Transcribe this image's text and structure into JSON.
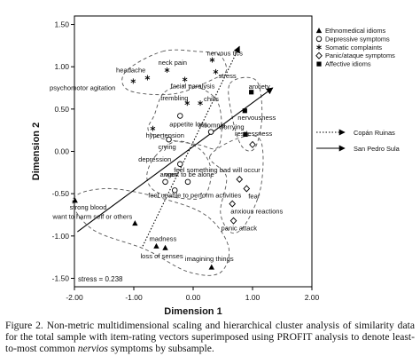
{
  "chart_data": {
    "type": "scatter",
    "xlabel": "Dimension 1",
    "ylabel": "Dimension 2",
    "xlim": [
      -2.0,
      2.0
    ],
    "ylim": [
      -1.6,
      1.6
    ],
    "xticks": [
      "-2.00",
      "-1.00",
      "0.00",
      "1.00",
      "2.00"
    ],
    "yticks": [
      "1.50",
      "1.00",
      "0.50",
      "0.00",
      "-0.50",
      "-1.00",
      "-1.50"
    ],
    "xtick_values": [
      -2,
      -1,
      0,
      1,
      2
    ],
    "ytick_values": [
      1.5,
      1.0,
      0.5,
      0.0,
      -0.5,
      -1.0,
      -1.5
    ],
    "stress_label": "stress = 0.238",
    "legend": {
      "position": "right",
      "series": [
        {
          "name": "Ethnomedical idioms",
          "marker": "triangle"
        },
        {
          "name": "Depressive symptoms",
          "marker": "circle"
        },
        {
          "name": "Somatic complaints",
          "marker": "star"
        },
        {
          "name": "Panic/ataque symptoms",
          "marker": "diamond"
        },
        {
          "name": "Affective idioms",
          "marker": "square"
        }
      ],
      "vectors": [
        {
          "name": "Copán Ruinas",
          "style": "dotted"
        },
        {
          "name": "San Pedro Sula",
          "style": "solid"
        }
      ]
    },
    "points": [
      {
        "label": "nervous tics",
        "x": 0.32,
        "y": 1.08,
        "marker": "star"
      },
      {
        "label": "headache",
        "x": -0.77,
        "y": 0.87,
        "marker": "star"
      },
      {
        "label": "neck pain",
        "x": -0.44,
        "y": 0.96,
        "marker": "star"
      },
      {
        "label": "stress",
        "x": 0.38,
        "y": 0.94,
        "marker": "star"
      },
      {
        "label": "facial paralysis",
        "x": -0.14,
        "y": 0.85,
        "marker": "star"
      },
      {
        "label": "psychomotor agitation",
        "x": -1.01,
        "y": 0.83,
        "marker": "star"
      },
      {
        "label": "anxiety",
        "x": 0.98,
        "y": 0.7,
        "marker": "square"
      },
      {
        "label": "trembling",
        "x": -0.1,
        "y": 0.57,
        "marker": "star"
      },
      {
        "label": "chills",
        "x": 0.12,
        "y": 0.57,
        "marker": "star"
      },
      {
        "label": "nervousness",
        "x": 0.87,
        "y": 0.48,
        "marker": "square"
      },
      {
        "label": "appetite loss",
        "x": -0.22,
        "y": 0.42,
        "marker": "circle"
      },
      {
        "label": "hypertension",
        "x": -0.68,
        "y": 0.27,
        "marker": "star"
      },
      {
        "label": "worrying",
        "x": 0.88,
        "y": 0.2,
        "marker": "square"
      },
      {
        "label": "insomnia",
        "x": 0.3,
        "y": 0.23,
        "marker": "circle"
      },
      {
        "label": "crying",
        "x": -0.41,
        "y": 0.14,
        "marker": "circle"
      },
      {
        "label": "restlessness",
        "x": 1.0,
        "y": 0.08,
        "marker": "diamond"
      },
      {
        "label": "depression",
        "x": -0.22,
        "y": -0.15,
        "marker": "circle"
      },
      {
        "label": "want to be alone",
        "x": -0.09,
        "y": -0.36,
        "marker": "circle"
      },
      {
        "label": "feel something bad will occur",
        "x": 0.78,
        "y": -0.33,
        "marker": "diamond"
      },
      {
        "label": "anger",
        "x": -0.47,
        "y": -0.36,
        "marker": "circle"
      },
      {
        "label": "feel unable to perform activities",
        "x": -0.31,
        "y": -0.46,
        "marker": "circle"
      },
      {
        "label": "fear",
        "x": 0.9,
        "y": -0.44,
        "marker": "diamond"
      },
      {
        "label": "strong blood",
        "x": -1.99,
        "y": -0.58,
        "marker": "triangle"
      },
      {
        "label": "anxious reactions",
        "x": 0.66,
        "y": -0.62,
        "marker": "diamond"
      },
      {
        "label": "panic attack",
        "x": 0.68,
        "y": -0.82,
        "marker": "diamond"
      },
      {
        "label": "want to harm self or others",
        "x": -0.98,
        "y": -0.85,
        "marker": "triangle"
      },
      {
        "label": "madness",
        "x": -0.62,
        "y": -1.12,
        "marker": "triangle"
      },
      {
        "label": "loss of senses",
        "x": -0.47,
        "y": -1.14,
        "marker": "triangle"
      },
      {
        "label": "imagining things",
        "x": 0.31,
        "y": -1.37,
        "marker": "triangle"
      }
    ],
    "vectors": [
      {
        "name": "Copán Ruinas",
        "style": "dotted",
        "from": [
          -0.85,
          -1.12
        ],
        "to": [
          0.78,
          1.24
        ]
      },
      {
        "name": "San Pedro Sula",
        "style": "solid",
        "from": [
          -1.95,
          -0.95
        ],
        "to": [
          1.34,
          0.75
        ]
      }
    ]
  },
  "caption": {
    "text_before_italic": "Figure 2. Non-metric multidimensional scaling and hierarchical cluster analysis of similarity data for the total sample with item-rating vectors superimposed using PROFIT analysis to denote least-to-most common ",
    "italic": "nervios",
    "text_after_italic": " symptoms by subsample."
  }
}
